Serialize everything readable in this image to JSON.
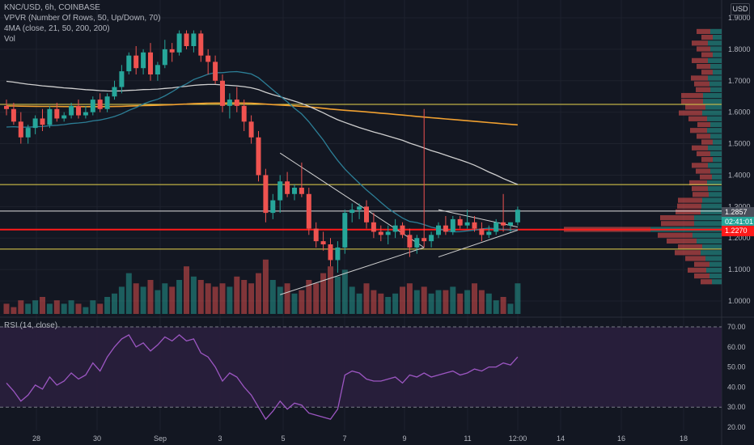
{
  "header": {
    "symbol_line": "KNC/USD, 6h, COINBASE",
    "vpvr_line": "VPVR (Number Of Rows, 50, Up/Down, 70)",
    "ma_line": "4MA (close, 21, 50, 200, 200)",
    "vol_line": "Vol",
    "rsi_line": "RSI (14, close)",
    "currency": "USD"
  },
  "price_tags": {
    "last_price": "1.2857",
    "countdown": "02:41:01",
    "red_level": "1.2270"
  },
  "colors": {
    "background": "#131722",
    "up": "#26a69a",
    "down": "#ef5350",
    "ma_short": "#2c7e96",
    "ma_mid": "#cfcfcf",
    "ma_long": "#f0a030",
    "horizontal_yellow": "#e8d44d",
    "horizontal_red": "#ff1a1a",
    "rsi_line": "#9c56c2",
    "rsi_band": "#2a1f3d"
  },
  "chart_data": {
    "type": "candlestick",
    "price_axis": {
      "ticks": [
        "1.9000",
        "1.8000",
        "1.7000",
        "1.6000",
        "1.5000",
        "1.4000",
        "1.3000",
        "1.2000",
        "1.1000",
        "1.0000"
      ],
      "ylim": [
        0.95,
        1.95
      ]
    },
    "rsi_axis": {
      "ticks": [
        "70.00",
        "60.00",
        "50.00",
        "40.00",
        "30.00",
        "20.00"
      ],
      "ylim": [
        18,
        73
      ],
      "bands": [
        30,
        70
      ]
    },
    "x_ticks": [
      "28",
      "30",
      "Sep",
      "3",
      "5",
      "7",
      "9",
      "11",
      "12:00",
      "14",
      "16",
      "18"
    ],
    "candles": [
      {
        "o": 1.62,
        "h": 1.64,
        "l": 1.59,
        "c": 1.61
      },
      {
        "o": 1.61,
        "h": 1.63,
        "l": 1.56,
        "c": 1.57
      },
      {
        "o": 1.57,
        "h": 1.6,
        "l": 1.5,
        "c": 1.52
      },
      {
        "o": 1.52,
        "h": 1.56,
        "l": 1.5,
        "c": 1.55
      },
      {
        "o": 1.55,
        "h": 1.59,
        "l": 1.53,
        "c": 1.58
      },
      {
        "o": 1.58,
        "h": 1.61,
        "l": 1.54,
        "c": 1.56
      },
      {
        "o": 1.56,
        "h": 1.62,
        "l": 1.55,
        "c": 1.61
      },
      {
        "o": 1.61,
        "h": 1.63,
        "l": 1.57,
        "c": 1.58
      },
      {
        "o": 1.58,
        "h": 1.6,
        "l": 1.57,
        "c": 1.59
      },
      {
        "o": 1.59,
        "h": 1.63,
        "l": 1.58,
        "c": 1.62
      },
      {
        "o": 1.62,
        "h": 1.64,
        "l": 1.58,
        "c": 1.59
      },
      {
        "o": 1.59,
        "h": 1.62,
        "l": 1.58,
        "c": 1.6
      },
      {
        "o": 1.6,
        "h": 1.65,
        "l": 1.59,
        "c": 1.64
      },
      {
        "o": 1.64,
        "h": 1.66,
        "l": 1.6,
        "c": 1.61
      },
      {
        "o": 1.61,
        "h": 1.66,
        "l": 1.6,
        "c": 1.65
      },
      {
        "o": 1.65,
        "h": 1.7,
        "l": 1.64,
        "c": 1.68
      },
      {
        "o": 1.68,
        "h": 1.75,
        "l": 1.66,
        "c": 1.73
      },
      {
        "o": 1.73,
        "h": 1.79,
        "l": 1.72,
        "c": 1.78
      },
      {
        "o": 1.78,
        "h": 1.81,
        "l": 1.72,
        "c": 1.74
      },
      {
        "o": 1.74,
        "h": 1.8,
        "l": 1.72,
        "c": 1.79
      },
      {
        "o": 1.79,
        "h": 1.82,
        "l": 1.7,
        "c": 1.72
      },
      {
        "o": 1.72,
        "h": 1.76,
        "l": 1.7,
        "c": 1.75
      },
      {
        "o": 1.75,
        "h": 1.83,
        "l": 1.74,
        "c": 1.8
      },
      {
        "o": 1.8,
        "h": 1.82,
        "l": 1.76,
        "c": 1.79
      },
      {
        "o": 1.79,
        "h": 1.86,
        "l": 1.78,
        "c": 1.85
      },
      {
        "o": 1.85,
        "h": 1.86,
        "l": 1.8,
        "c": 1.81
      },
      {
        "o": 1.81,
        "h": 1.86,
        "l": 1.79,
        "c": 1.85
      },
      {
        "o": 1.85,
        "h": 1.86,
        "l": 1.76,
        "c": 1.78
      },
      {
        "o": 1.78,
        "h": 1.8,
        "l": 1.72,
        "c": 1.76
      },
      {
        "o": 1.76,
        "h": 1.78,
        "l": 1.69,
        "c": 1.7
      },
      {
        "o": 1.7,
        "h": 1.72,
        "l": 1.6,
        "c": 1.62
      },
      {
        "o": 1.62,
        "h": 1.66,
        "l": 1.58,
        "c": 1.64
      },
      {
        "o": 1.64,
        "h": 1.68,
        "l": 1.6,
        "c": 1.62
      },
      {
        "o": 1.62,
        "h": 1.64,
        "l": 1.54,
        "c": 1.57
      },
      {
        "o": 1.57,
        "h": 1.59,
        "l": 1.5,
        "c": 1.52
      },
      {
        "o": 1.52,
        "h": 1.54,
        "l": 1.38,
        "c": 1.4
      },
      {
        "o": 1.4,
        "h": 1.42,
        "l": 1.25,
        "c": 1.28
      },
      {
        "o": 1.28,
        "h": 1.34,
        "l": 1.26,
        "c": 1.32
      },
      {
        "o": 1.32,
        "h": 1.4,
        "l": 1.28,
        "c": 1.38
      },
      {
        "o": 1.38,
        "h": 1.41,
        "l": 1.33,
        "c": 1.34
      },
      {
        "o": 1.34,
        "h": 1.37,
        "l": 1.32,
        "c": 1.36
      },
      {
        "o": 1.36,
        "h": 1.44,
        "l": 1.33,
        "c": 1.34
      },
      {
        "o": 1.34,
        "h": 1.36,
        "l": 1.21,
        "c": 1.23
      },
      {
        "o": 1.23,
        "h": 1.25,
        "l": 1.17,
        "c": 1.19
      },
      {
        "o": 1.19,
        "h": 1.22,
        "l": 1.16,
        "c": 1.18
      },
      {
        "o": 1.18,
        "h": 1.2,
        "l": 1.11,
        "c": 1.13
      },
      {
        "o": 1.13,
        "h": 1.19,
        "l": 1.09,
        "c": 1.17
      },
      {
        "o": 1.17,
        "h": 1.29,
        "l": 1.15,
        "c": 1.28
      },
      {
        "o": 1.28,
        "h": 1.31,
        "l": 1.25,
        "c": 1.29
      },
      {
        "o": 1.29,
        "h": 1.31,
        "l": 1.26,
        "c": 1.3
      },
      {
        "o": 1.3,
        "h": 1.32,
        "l": 1.23,
        "c": 1.25
      },
      {
        "o": 1.25,
        "h": 1.28,
        "l": 1.2,
        "c": 1.22
      },
      {
        "o": 1.22,
        "h": 1.24,
        "l": 1.19,
        "c": 1.21
      },
      {
        "o": 1.21,
        "h": 1.24,
        "l": 1.18,
        "c": 1.22
      },
      {
        "o": 1.22,
        "h": 1.26,
        "l": 1.2,
        "c": 1.24
      },
      {
        "o": 1.24,
        "h": 1.25,
        "l": 1.2,
        "c": 1.21
      },
      {
        "o": 1.21,
        "h": 1.23,
        "l": 1.14,
        "c": 1.17
      },
      {
        "o": 1.17,
        "h": 1.21,
        "l": 1.15,
        "c": 1.2
      },
      {
        "o": 1.2,
        "h": 1.61,
        "l": 1.17,
        "c": 1.19
      },
      {
        "o": 1.19,
        "h": 1.22,
        "l": 1.17,
        "c": 1.21
      },
      {
        "o": 1.21,
        "h": 1.25,
        "l": 1.2,
        "c": 1.24
      },
      {
        "o": 1.24,
        "h": 1.27,
        "l": 1.21,
        "c": 1.22
      },
      {
        "o": 1.22,
        "h": 1.27,
        "l": 1.21,
        "c": 1.26
      },
      {
        "o": 1.26,
        "h": 1.27,
        "l": 1.23,
        "c": 1.24
      },
      {
        "o": 1.24,
        "h": 1.29,
        "l": 1.23,
        "c": 1.25
      },
      {
        "o": 1.25,
        "h": 1.27,
        "l": 1.22,
        "c": 1.23
      },
      {
        "o": 1.23,
        "h": 1.25,
        "l": 1.19,
        "c": 1.21
      },
      {
        "o": 1.21,
        "h": 1.24,
        "l": 1.2,
        "c": 1.22
      },
      {
        "o": 1.22,
        "h": 1.26,
        "l": 1.21,
        "c": 1.25
      },
      {
        "o": 1.25,
        "h": 1.34,
        "l": 1.22,
        "c": 1.24
      },
      {
        "o": 1.24,
        "h": 1.25,
        "l": 1.22,
        "c": 1.25
      },
      {
        "o": 1.25,
        "h": 1.3,
        "l": 1.24,
        "c": 1.29
      }
    ],
    "volume": [
      3,
      2,
      4,
      3,
      4,
      5,
      3,
      4,
      3,
      4,
      3,
      2,
      4,
      3,
      5,
      6,
      8,
      12,
      9,
      8,
      10,
      7,
      9,
      8,
      10,
      14,
      11,
      10,
      9,
      8,
      9,
      8,
      11,
      10,
      9,
      12,
      16,
      10,
      8,
      9,
      6,
      7,
      10,
      9,
      12,
      14,
      11,
      13,
      8,
      6,
      9,
      7,
      6,
      5,
      6,
      8,
      9,
      7,
      8,
      6,
      7,
      7,
      8,
      6,
      7,
      9,
      7,
      6,
      4,
      5,
      3,
      9
    ],
    "rsi": [
      42,
      38,
      33,
      36,
      41,
      39,
      45,
      41,
      43,
      47,
      44,
      46,
      52,
      48,
      55,
      60,
      64,
      66,
      60,
      62,
      58,
      61,
      65,
      63,
      66,
      63,
      64,
      57,
      55,
      50,
      43,
      47,
      45,
      40,
      36,
      30,
      24,
      28,
      33,
      29,
      32,
      31,
      27,
      26,
      25,
      24,
      29,
      46,
      48,
      47,
      44,
      43,
      43,
      44,
      45,
      42,
      46,
      45,
      47,
      45,
      46,
      47,
      48,
      46,
      47,
      49,
      48,
      50,
      50,
      52,
      51,
      55
    ]
  },
  "levels": {
    "yellow": [
      1.625,
      1.37,
      1.165
    ],
    "red": 1.227,
    "white": 1.2857
  }
}
